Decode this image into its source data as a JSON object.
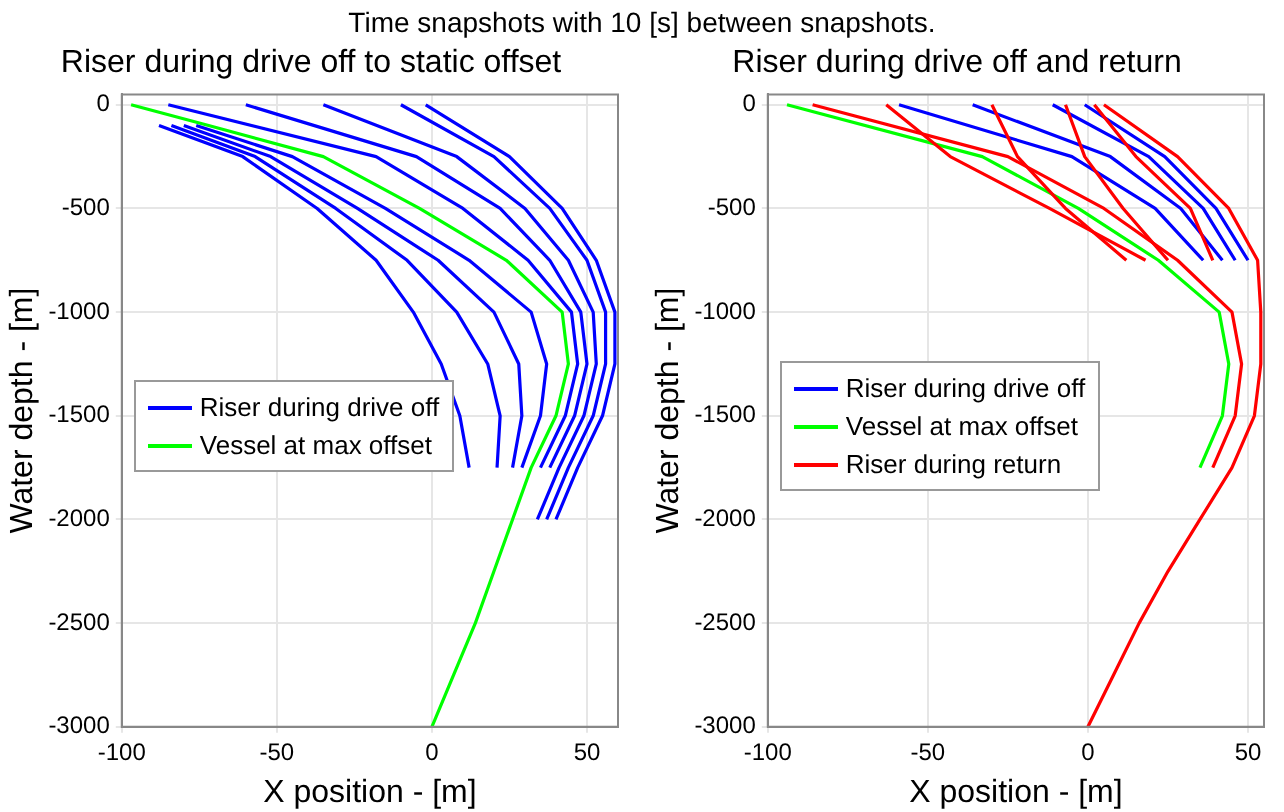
{
  "chart_data": [
    {
      "type": "line",
      "title": "Riser during drive off to static offset",
      "annotations": [
        "Time snapshots with 10 [s] between snapshots."
      ],
      "xlabel": "X position - [m]",
      "ylabel": "Water depth - [m]",
      "xlim": [
        -100,
        60
      ],
      "ylim": [
        -3000,
        50
      ],
      "xticks": [
        -100,
        -50,
        0,
        50
      ],
      "yticks": [
        -3000,
        -2500,
        -2000,
        -1500,
        -1000,
        -500,
        0
      ],
      "grid": true,
      "legend": "left",
      "series": [
        {
          "name": "Riser during drive off",
          "color": "#0000ff",
          "x": [
            -2,
            25,
            42,
            53,
            59,
            59,
            55,
            47,
            40
          ],
          "values": [
            0,
            -250,
            -500,
            -750,
            -1000,
            -1250,
            -1500,
            -1750,
            -2000
          ]
        },
        {
          "color": "#0000ff",
          "x": [
            -10,
            20,
            38,
            50,
            56,
            56,
            52,
            44,
            37
          ],
          "values": [
            0,
            -250,
            -500,
            -750,
            -1000,
            -1250,
            -1500,
            -1750,
            -2000
          ]
        },
        {
          "color": "#0000ff",
          "x": [
            -35,
            8,
            30,
            44,
            52,
            53,
            49,
            41,
            34
          ],
          "values": [
            0,
            -250,
            -500,
            -750,
            -1000,
            -1250,
            -1500,
            -1750,
            -2000
          ]
        },
        {
          "color": "#0000ff",
          "x": [
            -60,
            -5,
            22,
            38,
            48,
            50,
            46,
            38
          ],
          "values": [
            0,
            -250,
            -500,
            -750,
            -1000,
            -1250,
            -1500,
            -1750
          ]
        },
        {
          "color": "#0000ff",
          "x": [
            -85,
            -18,
            10,
            31,
            45,
            47,
            43,
            35
          ],
          "values": [
            0,
            -250,
            -500,
            -750,
            -1000,
            -1250,
            -1500,
            -1750
          ]
        },
        {
          "color": "#0000ff",
          "x": [
            -76,
            -45,
            -15,
            12,
            32,
            37,
            35,
            29
          ],
          "values": [
            -100,
            -250,
            -500,
            -750,
            -1000,
            -1250,
            -1500,
            -1750
          ]
        },
        {
          "color": "#0000ff",
          "x": [
            -80,
            -52,
            -24,
            2,
            20,
            28,
            29,
            26
          ],
          "values": [
            -100,
            -250,
            -500,
            -750,
            -1000,
            -1250,
            -1500,
            -1750
          ]
        },
        {
          "color": "#0000ff",
          "x": [
            -84,
            -57,
            -31,
            -8,
            8,
            18,
            22,
            21
          ],
          "values": [
            -100,
            -250,
            -500,
            -750,
            -1000,
            -1250,
            -1500,
            -1750
          ]
        },
        {
          "color": "#0000ff",
          "x": [
            -88,
            -61,
            -37,
            -18,
            -6,
            3,
            9,
            12
          ],
          "values": [
            -100,
            -250,
            -500,
            -750,
            -1000,
            -1250,
            -1500,
            -1750
          ]
        },
        {
          "name": "Vessel at max offset",
          "color": "#00ff00",
          "x": [
            -97,
            -72,
            -35,
            -4,
            24,
            42,
            44,
            40,
            32,
            26,
            20,
            14,
            7,
            0
          ],
          "values": [
            0,
            -100,
            -250,
            -500,
            -750,
            -1000,
            -1250,
            -1500,
            -1750,
            -2000,
            -2250,
            -2500,
            -2750,
            -3000
          ]
        }
      ]
    },
    {
      "type": "line",
      "title": "Riser during drive off and return",
      "xlabel": "X position - [m]",
      "ylabel": "Water depth - [m]",
      "xlim": [
        -100,
        55
      ],
      "ylim": [
        -3000,
        50
      ],
      "xticks": [
        -100,
        -50,
        0,
        50
      ],
      "yticks": [
        -3000,
        -2500,
        -2000,
        -1500,
        -1000,
        -500,
        0
      ],
      "grid": true,
      "legend": "left",
      "series": [
        {
          "name": "Riser during drive off",
          "color": "#0000ff",
          "x": [
            -1,
            24,
            40,
            50
          ],
          "values": [
            0,
            -250,
            -500,
            -750
          ]
        },
        {
          "color": "#0000ff",
          "x": [
            -11,
            19,
            36,
            46
          ],
          "values": [
            0,
            -250,
            -500,
            -750
          ]
        },
        {
          "color": "#0000ff",
          "x": [
            -36,
            7,
            29,
            42
          ],
          "values": [
            0,
            -250,
            -500,
            -750
          ]
        },
        {
          "color": "#0000ff",
          "x": [
            -59,
            -5,
            21,
            36
          ],
          "values": [
            0,
            -250,
            -500,
            -750
          ]
        },
        {
          "name": "Vessel at max offset",
          "color": "#00ff00",
          "x": [
            -94,
            -33,
            -3,
            22,
            41,
            44,
            42,
            35
          ],
          "values": [
            0,
            -250,
            -500,
            -750,
            -1000,
            -1250,
            -1500,
            -1750
          ]
        },
        {
          "name": "Riser during return",
          "color": "#ff0000",
          "x": [
            -86,
            -25,
            5,
            28,
            45,
            48,
            46,
            39
          ],
          "values": [
            0,
            -250,
            -500,
            -750,
            -1000,
            -1250,
            -1500,
            -1750
          ]
        },
        {
          "color": "#ff0000",
          "x": [
            -63,
            -43,
            -12,
            18
          ],
          "values": [
            0,
            -250,
            -500,
            -750
          ]
        },
        {
          "color": "#ff0000",
          "x": [
            -30,
            -22,
            -7,
            12
          ],
          "values": [
            0,
            -250,
            -500,
            -750
          ]
        },
        {
          "color": "#ff0000",
          "x": [
            -7,
            -1,
            11,
            25
          ],
          "values": [
            0,
            -250,
            -500,
            -750
          ]
        },
        {
          "color": "#ff0000",
          "x": [
            2,
            15,
            32,
            39
          ],
          "values": [
            0,
            -250,
            -500,
            -750
          ]
        },
        {
          "color": "#ff0000",
          "x": [
            5,
            28,
            44,
            53,
            54,
            54,
            52,
            45,
            35,
            25,
            16,
            8,
            0
          ],
          "values": [
            0,
            -250,
            -500,
            -750,
            -1000,
            -1250,
            -1500,
            -1750,
            -2000,
            -2250,
            -2500,
            -2750,
            -3000
          ]
        }
      ]
    }
  ]
}
